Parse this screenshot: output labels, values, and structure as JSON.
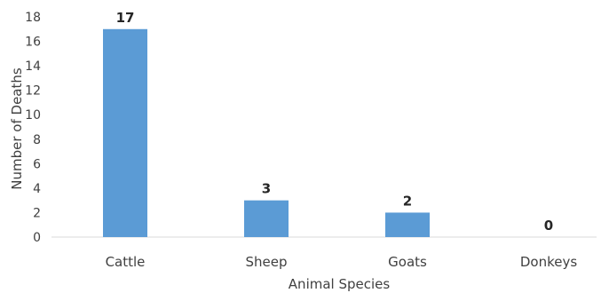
{
  "chart_data": {
    "type": "bar",
    "categories": [
      "Cattle",
      "Sheep",
      "Goats",
      "Donkeys"
    ],
    "values": [
      17,
      3,
      2,
      0
    ],
    "data_labels": [
      "17",
      "3",
      "2",
      "0"
    ],
    "title": "",
    "xlabel": "Animal Species",
    "ylabel": "Number of Deaths",
    "ylim": [
      0,
      18
    ],
    "yticks": [
      0,
      2,
      4,
      6,
      8,
      10,
      12,
      14,
      16,
      18
    ],
    "grid": false,
    "legend": "none",
    "bar_color": "#5b9bd5",
    "axis_color": "#d9d9d9"
  }
}
